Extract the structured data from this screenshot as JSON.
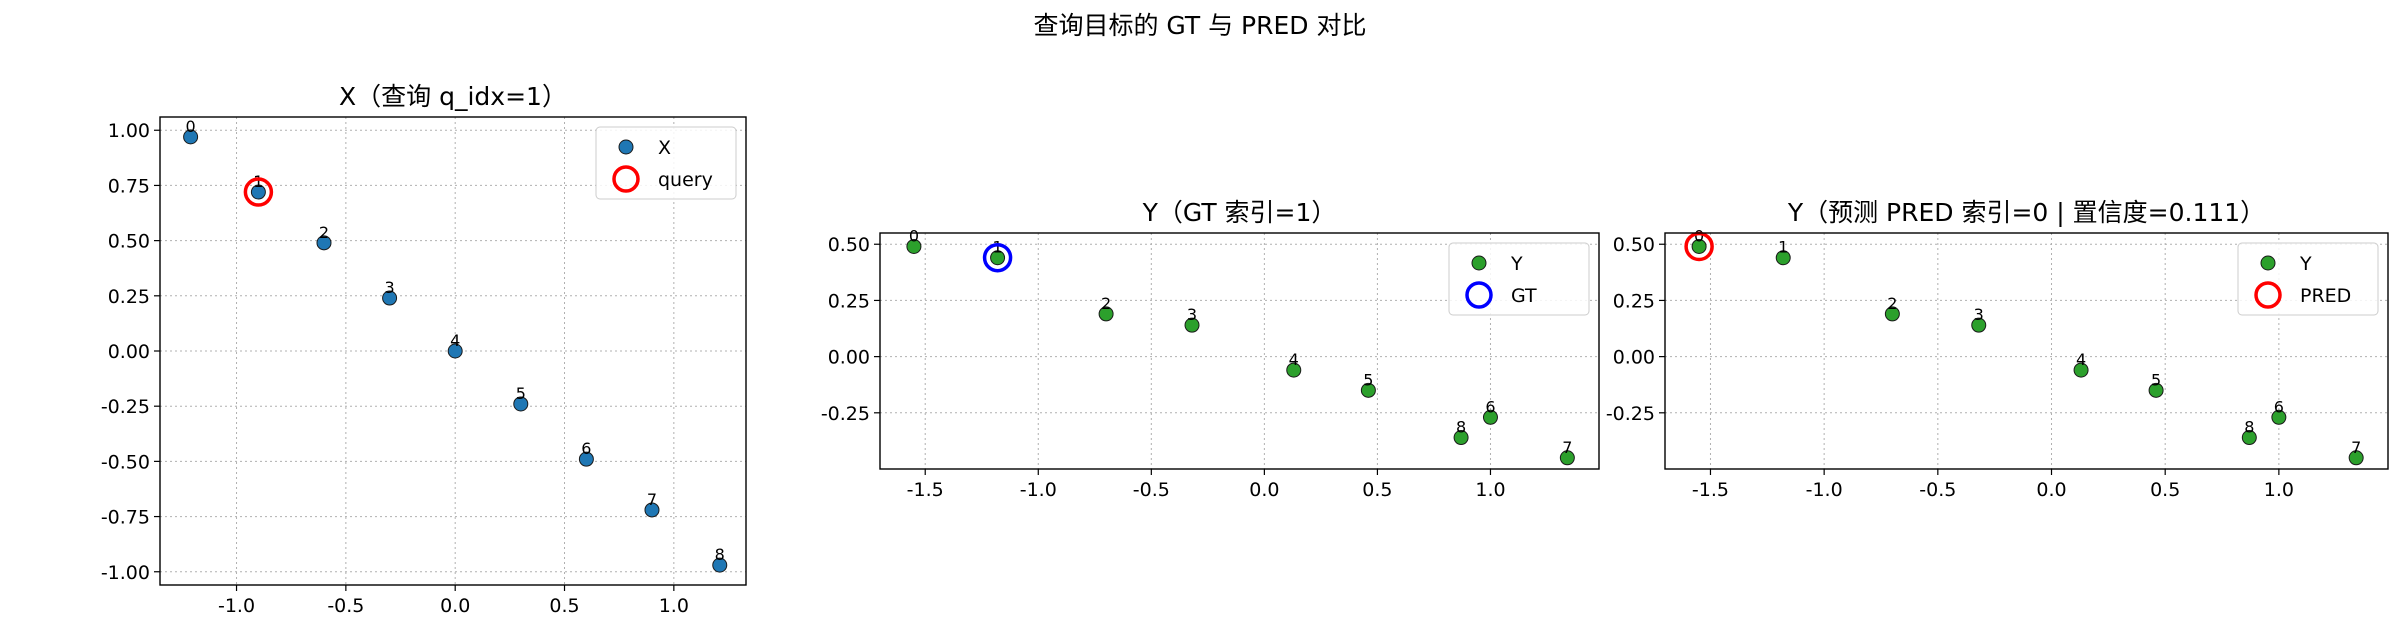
{
  "figure": {
    "suptitle": "查询目标的 GT 与 PRED 对比"
  },
  "colors": {
    "x_points": "#1f77b4",
    "y_points": "#2ca02c",
    "query_ring": "#ff0000",
    "gt_ring": "#0000ff",
    "pred_ring": "#ff0000",
    "grid": "#b0b0b0"
  },
  "chart_data": [
    {
      "type": "scatter",
      "title": "X（查询 q_idx=1）",
      "xlabel": "",
      "ylabel": "",
      "xlim": [
        -1.35,
        1.33
      ],
      "ylim": [
        -1.06,
        1.06
      ],
      "xticks": [
        -1.0,
        -0.5,
        0.0,
        0.5,
        1.0
      ],
      "xtick_labels": [
        "-1.0",
        "-0.5",
        "0.0",
        "0.5",
        "1.0"
      ],
      "yticks": [
        1.0,
        0.75,
        0.5,
        0.25,
        0.0,
        -0.25,
        -0.5,
        -0.75,
        -1.0
      ],
      "ytick_labels": [
        "1.00",
        "0.75",
        "0.50",
        "0.25",
        "0.00",
        "-0.25",
        "-0.50",
        "-0.75",
        "-1.00"
      ],
      "grid": true,
      "legend_position": "top-right",
      "series": [
        {
          "name": "X",
          "marker": "dot",
          "color": "#1f77b4",
          "points": [
            {
              "label": "0",
              "x": -1.21,
              "y": 0.97
            },
            {
              "label": "1",
              "x": -0.9,
              "y": 0.72
            },
            {
              "label": "2",
              "x": -0.6,
              "y": 0.49
            },
            {
              "label": "3",
              "x": -0.3,
              "y": 0.24
            },
            {
              "label": "4",
              "x": 0.0,
              "y": 0.0
            },
            {
              "label": "5",
              "x": 0.3,
              "y": -0.24
            },
            {
              "label": "6",
              "x": 0.6,
              "y": -0.49
            },
            {
              "label": "7",
              "x": 0.9,
              "y": -0.72
            },
            {
              "label": "8",
              "x": 1.21,
              "y": -0.97
            }
          ]
        },
        {
          "name": "query",
          "marker": "ring",
          "color": "#ff0000",
          "points": [
            {
              "label": "",
              "x": -0.9,
              "y": 0.72
            }
          ]
        }
      ]
    },
    {
      "type": "scatter",
      "title": "Y（GT 索引=1）",
      "xlabel": "",
      "ylabel": "",
      "xlim": [
        -1.7,
        1.48
      ],
      "ylim": [
        -0.5,
        0.55
      ],
      "xticks": [
        -1.5,
        -1.0,
        -0.5,
        0.0,
        0.5,
        1.0
      ],
      "xtick_labels": [
        "-1.5",
        "-1.0",
        "-0.5",
        "0.0",
        "0.5",
        "1.0"
      ],
      "yticks": [
        0.5,
        0.25,
        0.0,
        -0.25
      ],
      "ytick_labels": [
        "0.50",
        "0.25",
        "0.00",
        "-0.25"
      ],
      "grid": true,
      "legend_position": "top-right",
      "series": [
        {
          "name": "Y",
          "marker": "dot",
          "color": "#2ca02c",
          "points": [
            {
              "label": "0",
              "x": -1.55,
              "y": 0.49
            },
            {
              "label": "1",
              "x": -1.18,
              "y": 0.44
            },
            {
              "label": "2",
              "x": -0.7,
              "y": 0.19
            },
            {
              "label": "3",
              "x": -0.32,
              "y": 0.14
            },
            {
              "label": "4",
              "x": 0.13,
              "y": -0.06
            },
            {
              "label": "5",
              "x": 0.46,
              "y": -0.15
            },
            {
              "label": "6",
              "x": 1.0,
              "y": -0.27
            },
            {
              "label": "7",
              "x": 1.34,
              "y": -0.45
            },
            {
              "label": "8",
              "x": 0.87,
              "y": -0.36
            }
          ]
        },
        {
          "name": "GT",
          "marker": "ring",
          "color": "#0000ff",
          "points": [
            {
              "label": "",
              "x": -1.18,
              "y": 0.44
            }
          ]
        }
      ]
    },
    {
      "type": "scatter",
      "title": "Y（预测 PRED 索引=0 | 置信度=0.111）",
      "xlabel": "",
      "ylabel": "",
      "xlim": [
        -1.7,
        1.48
      ],
      "ylim": [
        -0.5,
        0.55
      ],
      "xticks": [
        -1.5,
        -1.0,
        -0.5,
        0.0,
        0.5,
        1.0
      ],
      "xtick_labels": [
        "-1.5",
        "-1.0",
        "-0.5",
        "0.0",
        "0.5",
        "1.0"
      ],
      "yticks": [
        0.5,
        0.25,
        0.0,
        -0.25
      ],
      "ytick_labels": [
        "0.50",
        "0.25",
        "0.00",
        "-0.25"
      ],
      "grid": true,
      "legend_position": "top-right",
      "series": [
        {
          "name": "Y",
          "marker": "dot",
          "color": "#2ca02c",
          "points": [
            {
              "label": "0",
              "x": -1.55,
              "y": 0.49
            },
            {
              "label": "1",
              "x": -1.18,
              "y": 0.44
            },
            {
              "label": "2",
              "x": -0.7,
              "y": 0.19
            },
            {
              "label": "3",
              "x": -0.32,
              "y": 0.14
            },
            {
              "label": "4",
              "x": 0.13,
              "y": -0.06
            },
            {
              "label": "5",
              "x": 0.46,
              "y": -0.15
            },
            {
              "label": "6",
              "x": 1.0,
              "y": -0.27
            },
            {
              "label": "7",
              "x": 1.34,
              "y": -0.45
            },
            {
              "label": "8",
              "x": 0.87,
              "y": -0.36
            }
          ]
        },
        {
          "name": "PRED",
          "marker": "ring",
          "color": "#ff0000",
          "points": [
            {
              "label": "",
              "x": -1.55,
              "y": 0.49
            }
          ]
        }
      ]
    }
  ]
}
